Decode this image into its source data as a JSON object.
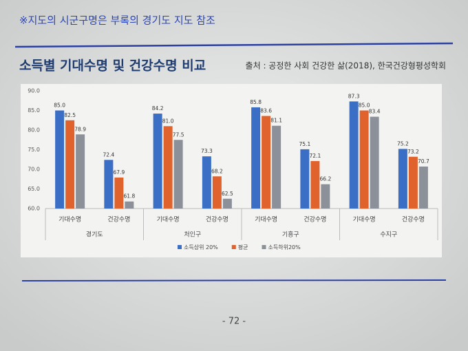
{
  "page": {
    "note": "※지도의 시군구명은 부록의 경기도 지도 참조",
    "title": "소득별 기대수명 및 건강수명 비교",
    "source": "출처 : 공정한 사회 건강한 삶(2018), 한국건강형평성학회",
    "page_number": "- 72 -"
  },
  "chart_data": {
    "type": "bar",
    "categories": [
      "기대수명",
      "건강수명",
      "기대수명",
      "건강수명",
      "기대수명",
      "건강수명",
      "기대수명",
      "건강수명"
    ],
    "groups": [
      "경기도",
      "처인구",
      "기흥구",
      "수지구"
    ],
    "series": [
      {
        "name": "소득상위 20%",
        "color": "#3b6fc6",
        "values": [
          85.0,
          72.4,
          84.2,
          73.3,
          85.8,
          75.1,
          87.3,
          75.2
        ],
        "value_labels": [
          "85.0",
          "72.4",
          "84.2",
          "73.3",
          "85.8",
          "75.1",
          "87.3",
          "75.2"
        ]
      },
      {
        "name": "평균",
        "color": "#e0622c",
        "values": [
          82.5,
          67.9,
          81.0,
          68.2,
          83.6,
          72.1,
          85.0,
          73.2
        ],
        "value_labels": [
          "82.5",
          "67.9",
          "81.0",
          "68.2",
          "83.6",
          "72.1",
          "85.0",
          "73.2"
        ]
      },
      {
        "name": "소득하위20%",
        "color": "#8c9099",
        "values": [
          78.9,
          61.8,
          77.5,
          62.5,
          81.1,
          66.2,
          83.4,
          70.7
        ],
        "value_labels": [
          "78.9",
          "61.8",
          "77.5",
          "62.5",
          "81.1",
          "66.2",
          "83.4",
          "70.7"
        ]
      }
    ],
    "ylim": [
      60,
      90
    ],
    "yticks": [
      {
        "value": 60,
        "label": "60.0"
      },
      {
        "value": 65,
        "label": "65.0"
      },
      {
        "value": 70,
        "label": "70.0"
      },
      {
        "value": 75,
        "label": "75.0"
      },
      {
        "value": 80,
        "label": "80.0"
      },
      {
        "value": 85,
        "label": "85.0"
      },
      {
        "value": 90,
        "label": "90.0"
      }
    ],
    "grid": false
  }
}
